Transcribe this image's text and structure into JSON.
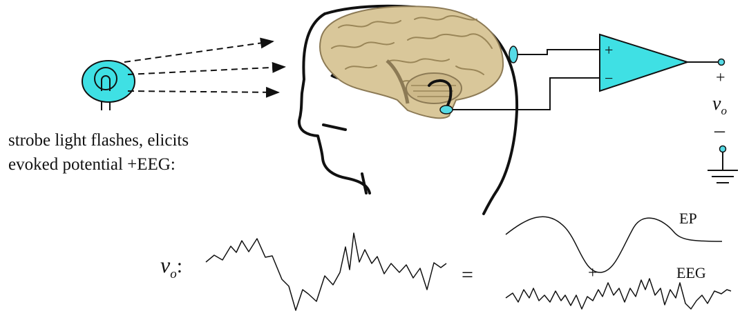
{
  "caption": {
    "line1": "strobe light flashes, elicits",
    "line2": "evoked potential +EEG:"
  },
  "amplifier": {
    "plus_input": "+",
    "minus_input": "−",
    "output_plus": "+",
    "output_minus": "–",
    "output_symbol": "v",
    "output_subscript": "o"
  },
  "signals": {
    "vo_symbol": "v",
    "vo_subscript": "o",
    "vo_colon": ":",
    "equals": "=",
    "plus": "+",
    "ep_label": "EP",
    "eeg_label": "EEG"
  },
  "colors": {
    "device": "#3fe0e4",
    "electrode": "#56dbe6",
    "stroke": "#111111",
    "brain": "#d9c79a"
  }
}
